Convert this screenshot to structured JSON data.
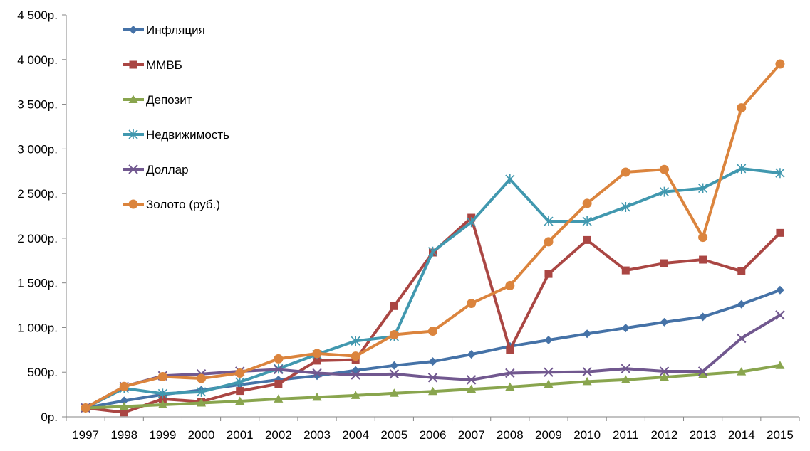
{
  "chart_data": {
    "type": "line",
    "title": "",
    "xlabel": "",
    "ylabel": "",
    "ylim": [
      0,
      4500
    ],
    "y_ticks": [
      0,
      500,
      1000,
      1500,
      2000,
      2500,
      3000,
      3500,
      4000,
      4500
    ],
    "y_tick_labels": [
      "0р.",
      "500р.",
      "1 000р.",
      "1 500р.",
      "2 000р.",
      "2 500р.",
      "3 000р.",
      "3 500р.",
      "4 000р.",
      "4 500р."
    ],
    "categories": [
      "1997",
      "1998",
      "1999",
      "2000",
      "2001",
      "2002",
      "2003",
      "2004",
      "2005",
      "2006",
      "2007",
      "2008",
      "2009",
      "2010",
      "2011",
      "2012",
      "2013",
      "2014",
      "2015"
    ],
    "grid": false,
    "legend_position": "top-left",
    "series": [
      {
        "name": "Инфляция",
        "color": "#4572A7",
        "marker": "diamond",
        "values": [
          100,
          180,
          250,
          300,
          360,
          415,
          460,
          520,
          575,
          620,
          700,
          790,
          860,
          930,
          995,
          1060,
          1120,
          1260,
          1420
        ]
      },
      {
        "name": "ММВБ",
        "color": "#AA4643",
        "marker": "square",
        "values": [
          100,
          50,
          200,
          170,
          290,
          370,
          630,
          640,
          1240,
          1840,
          2230,
          750,
          1600,
          1980,
          1640,
          1720,
          1760,
          1630,
          2060
        ]
      },
      {
        "name": "Депозит",
        "color": "#89A54E",
        "marker": "triangle",
        "values": [
          100,
          115,
          135,
          155,
          175,
          200,
          220,
          240,
          265,
          285,
          310,
          335,
          365,
          395,
          415,
          445,
          475,
          505,
          575
        ]
      },
      {
        "name": "Недвижимость",
        "color": "#4198AF",
        "marker": "asterisk",
        "values": [
          100,
          320,
          260,
          280,
          390,
          540,
          700,
          850,
          900,
          1850,
          2180,
          2660,
          2190,
          2190,
          2350,
          2520,
          2560,
          2780,
          2730
        ]
      },
      {
        "name": "Доллар",
        "color": "#71588F",
        "marker": "x",
        "values": [
          100,
          340,
          460,
          480,
          510,
          530,
          490,
          470,
          480,
          440,
          415,
          490,
          500,
          505,
          540,
          510,
          510,
          880,
          1140
        ]
      },
      {
        "name": "Золото (руб.)",
        "color": "#DB843D",
        "marker": "circle",
        "values": [
          100,
          340,
          450,
          430,
          490,
          650,
          710,
          680,
          920,
          960,
          1270,
          1470,
          1960,
          2390,
          2740,
          2770,
          2010,
          3460,
          3950
        ]
      }
    ]
  }
}
